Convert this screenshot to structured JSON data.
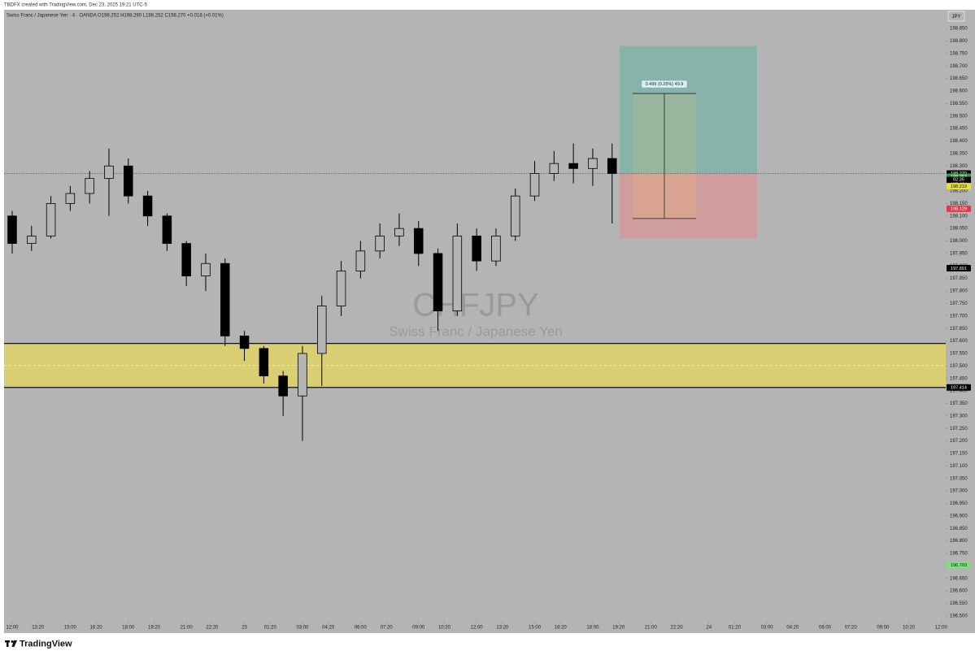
{
  "chart_data": {
    "type": "candlestick",
    "header": "TBDFX created with TradingView.com, Dec 23, 2025 19:21 UTC-5",
    "subtitle": "Swiss Franc / Japanese Yen · 4 · OANDA  O198.252 H198.290 L198.252 C198.270 +0.018 (+0.01%)",
    "watermark": "CHFJPY",
    "watermark_subtitle": "Swiss Franc / Japanese Yen",
    "currency": "JPY",
    "footer": "TradingView",
    "color": "#000000",
    "background": "#b4b4b4",
    "x": [
      0,
      1,
      2,
      3,
      4,
      5,
      6,
      7,
      8,
      9,
      10,
      11,
      12,
      13,
      14,
      15,
      16,
      17,
      18,
      19,
      20,
      21,
      22,
      23,
      24,
      25,
      26,
      27,
      28,
      29,
      30,
      31
    ],
    "open": [
      198.1,
      197.99,
      198.02,
      198.15,
      198.19,
      198.25,
      198.3,
      198.18,
      198.1,
      197.99,
      197.86,
      197.91,
      197.62,
      197.57,
      197.46,
      197.38,
      197.55,
      197.74,
      197.88,
      197.96,
      198.02,
      198.05,
      197.95,
      197.72,
      198.02,
      197.92,
      198.02,
      198.18,
      198.27,
      198.31,
      198.29,
      198.33
    ],
    "high": [
      198.12,
      198.06,
      198.18,
      198.22,
      198.28,
      198.37,
      198.33,
      198.2,
      198.11,
      198.0,
      197.95,
      197.93,
      197.64,
      197.58,
      197.48,
      197.58,
      197.78,
      197.92,
      198.0,
      198.07,
      198.11,
      198.08,
      197.97,
      198.07,
      198.05,
      198.05,
      198.21,
      198.32,
      198.36,
      198.39,
      198.37,
      198.39
    ],
    "low": [
      197.95,
      197.96,
      198.01,
      198.12,
      198.15,
      198.1,
      198.15,
      198.06,
      197.96,
      197.82,
      197.8,
      197.58,
      197.52,
      197.43,
      197.3,
      197.2,
      197.42,
      197.7,
      197.85,
      197.93,
      197.98,
      197.9,
      197.64,
      197.7,
      197.88,
      197.9,
      198.0,
      198.16,
      198.24,
      198.23,
      198.22,
      198.07
    ],
    "close": [
      197.99,
      198.02,
      198.15,
      198.19,
      198.25,
      198.3,
      198.18,
      198.1,
      197.99,
      197.86,
      197.91,
      197.62,
      197.57,
      197.46,
      197.38,
      197.55,
      197.74,
      197.88,
      197.96,
      198.02,
      198.05,
      197.95,
      197.72,
      198.02,
      197.92,
      198.02,
      198.18,
      198.27,
      198.31,
      198.29,
      198.33,
      198.27
    ],
    "xlim": [
      -0.42,
      48.24
    ],
    "xticks": [
      {
        "value": 0,
        "label": "12:00"
      },
      {
        "value": 1.333,
        "label": "13:20"
      },
      {
        "value": 3,
        "label": "15:00"
      },
      {
        "value": 4.333,
        "label": "16:20"
      },
      {
        "value": 6,
        "label": "18:00"
      },
      {
        "value": 7.333,
        "label": "19:20"
      },
      {
        "value": 9,
        "label": "21:00"
      },
      {
        "value": 10.333,
        "label": "22:20"
      },
      {
        "value": 12,
        "label": "23"
      },
      {
        "value": 13.333,
        "label": "01:20"
      },
      {
        "value": 15,
        "label": "03:00"
      },
      {
        "value": 16.333,
        "label": "04:20"
      },
      {
        "value": 18,
        "label": "06:00"
      },
      {
        "value": 19.333,
        "label": "07:20"
      },
      {
        "value": 21,
        "label": "09:00"
      },
      {
        "value": 22.333,
        "label": "10:20"
      },
      {
        "value": 24,
        "label": "12:00"
      },
      {
        "value": 25.333,
        "label": "13:20"
      },
      {
        "value": 27,
        "label": "15:00"
      },
      {
        "value": 28.333,
        "label": "16:20"
      },
      {
        "value": 30,
        "label": "18:00"
      },
      {
        "value": 31.333,
        "label": "19:20"
      },
      {
        "value": 33,
        "label": "21:00"
      },
      {
        "value": 34.333,
        "label": "22:20"
      },
      {
        "value": 36,
        "label": "24"
      },
      {
        "value": 37.333,
        "label": "01:20"
      },
      {
        "value": 39,
        "label": "03:00"
      },
      {
        "value": 40.333,
        "label": "04:20"
      },
      {
        "value": 42,
        "label": "06:00"
      },
      {
        "value": 43.333,
        "label": "07:20"
      },
      {
        "value": 45,
        "label": "09:00"
      },
      {
        "value": 46.333,
        "label": "10:20"
      },
      {
        "value": 48,
        "label": "12:00"
      }
    ],
    "ylim": [
      196.477,
      198.925
    ],
    "yticks": [
      {
        "value": 196.5,
        "label": "196.500"
      },
      {
        "value": 196.55,
        "label": "196.550"
      },
      {
        "value": 196.6,
        "label": "196.600"
      },
      {
        "value": 196.65,
        "label": "196.650"
      },
      {
        "value": 196.7,
        "label": "196.700"
      },
      {
        "value": 196.75,
        "label": "196.750"
      },
      {
        "value": 196.8,
        "label": "196.800"
      },
      {
        "value": 196.85,
        "label": "196.850"
      },
      {
        "value": 196.9,
        "label": "196.900"
      },
      {
        "value": 196.95,
        "label": "196.950"
      },
      {
        "value": 197,
        "label": "197.000"
      },
      {
        "value": 197.05,
        "label": "197.050"
      },
      {
        "value": 197.1,
        "label": "197.100"
      },
      {
        "value": 197.15,
        "label": "197.150"
      },
      {
        "value": 197.2,
        "label": "197.200"
      },
      {
        "value": 197.25,
        "label": "197.250"
      },
      {
        "value": 197.3,
        "label": "197.300"
      },
      {
        "value": 197.35,
        "label": "197.350"
      },
      {
        "value": 197.4,
        "label": "197.400"
      },
      {
        "value": 197.45,
        "label": "197.450"
      },
      {
        "value": 197.5,
        "label": "197.500"
      },
      {
        "value": 197.55,
        "label": "197.550"
      },
      {
        "value": 197.6,
        "label": "197.600"
      },
      {
        "value": 197.65,
        "label": "197.650"
      },
      {
        "value": 197.7,
        "label": "197.700"
      },
      {
        "value": 197.75,
        "label": "197.750"
      },
      {
        "value": 197.8,
        "label": "197.800"
      },
      {
        "value": 197.85,
        "label": "197.850"
      },
      {
        "value": 197.9,
        "label": "197.900"
      },
      {
        "value": 197.95,
        "label": "197.950"
      },
      {
        "value": 198,
        "label": "198.000"
      },
      {
        "value": 198.05,
        "label": "198.050"
      },
      {
        "value": 198.1,
        "label": "198.100"
      },
      {
        "value": 198.15,
        "label": "198.150"
      },
      {
        "value": 198.2,
        "label": "198.200"
      },
      {
        "value": 198.25,
        "label": "198.250"
      },
      {
        "value": 198.3,
        "label": "198.300"
      },
      {
        "value": 198.35,
        "label": "198.350"
      },
      {
        "value": 198.4,
        "label": "198.400"
      },
      {
        "value": 198.45,
        "label": "198.450"
      },
      {
        "value": 198.5,
        "label": "198.500"
      },
      {
        "value": 198.55,
        "label": "198.550"
      },
      {
        "value": 198.6,
        "label": "198.600"
      },
      {
        "value": 198.65,
        "label": "198.650"
      },
      {
        "value": 198.7,
        "label": "198.700"
      },
      {
        "value": 198.75,
        "label": "198.750"
      },
      {
        "value": 198.8,
        "label": "198.800"
      },
      {
        "value": 198.85,
        "label": "198.850"
      }
    ],
    "zone": {
      "from": 197.414,
      "to": 197.59,
      "mid": 197.502,
      "color": "#d9cf72"
    },
    "last_price": 198.27,
    "countdown": "02:35",
    "price_badges": [
      {
        "value": 198.27,
        "label": "198.270",
        "color": "#000000"
      },
      {
        "value": 198.257,
        "label": "198.257",
        "color": "#3a9a4a"
      },
      {
        "value": 198.232,
        "label": "198.232",
        "color": "#1c1c1c"
      },
      {
        "value": 198.219,
        "label": "198.219",
        "color": "#e8e03a"
      },
      {
        "value": 198.129,
        "label": "198.129",
        "color": "#e03a4a"
      },
      {
        "value": 197.891,
        "label": "197.891",
        "color": "#000000"
      },
      {
        "value": 197.414,
        "label": "197.414",
        "color": "#000000"
      },
      {
        "value": 196.703,
        "label": "196.703",
        "color": "#7ee07a"
      }
    ],
    "position": {
      "entry": 198.27,
      "take_profit": 198.78,
      "stop_loss": 198.01,
      "t_start": 31.39,
      "t_end": 38.49,
      "measure_from": 198.09,
      "measure_to": 198.59,
      "measure_t_start": 32.06,
      "measure_t_end": 35.34,
      "label": "0.499 (0.25%) 49.9"
    }
  }
}
